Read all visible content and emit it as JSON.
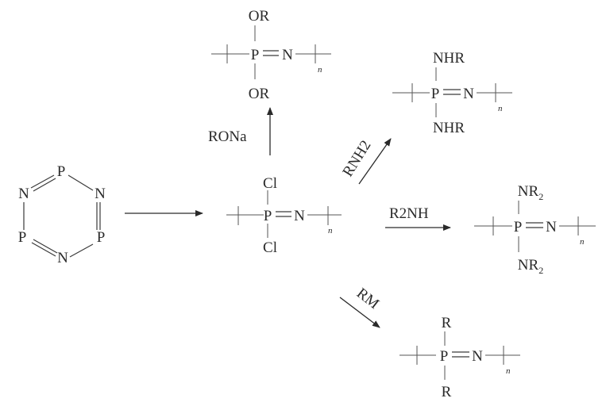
{
  "trimer": {
    "atoms": [
      "P",
      "N",
      "N",
      "P",
      "P",
      "N"
    ]
  },
  "center_polymer": {
    "top": "Cl",
    "bottom": "Cl",
    "p": "P",
    "n": "N",
    "sub": "n"
  },
  "reactions": {
    "up": {
      "reagent": "RONa",
      "top": "OR",
      "bottom": "OR",
      "p": "P",
      "n": "N",
      "sub": "n"
    },
    "upright": {
      "reagent": "RNH2",
      "top": "NHR",
      "bottom": "NHR",
      "p": "P",
      "n": "N",
      "sub": "n"
    },
    "right": {
      "reagent": "R2NH",
      "top_base": "NR",
      "top_sub": "2",
      "bottom_base": "NR",
      "bottom_sub": "2",
      "p": "P",
      "n": "N",
      "sub": "n"
    },
    "downright": {
      "reagent": "RM",
      "top": "R",
      "bottom": "R",
      "p": "P",
      "n": "N",
      "sub": "n"
    }
  },
  "colors": {
    "ink": "#2a2a2a",
    "background": "#ffffff"
  }
}
